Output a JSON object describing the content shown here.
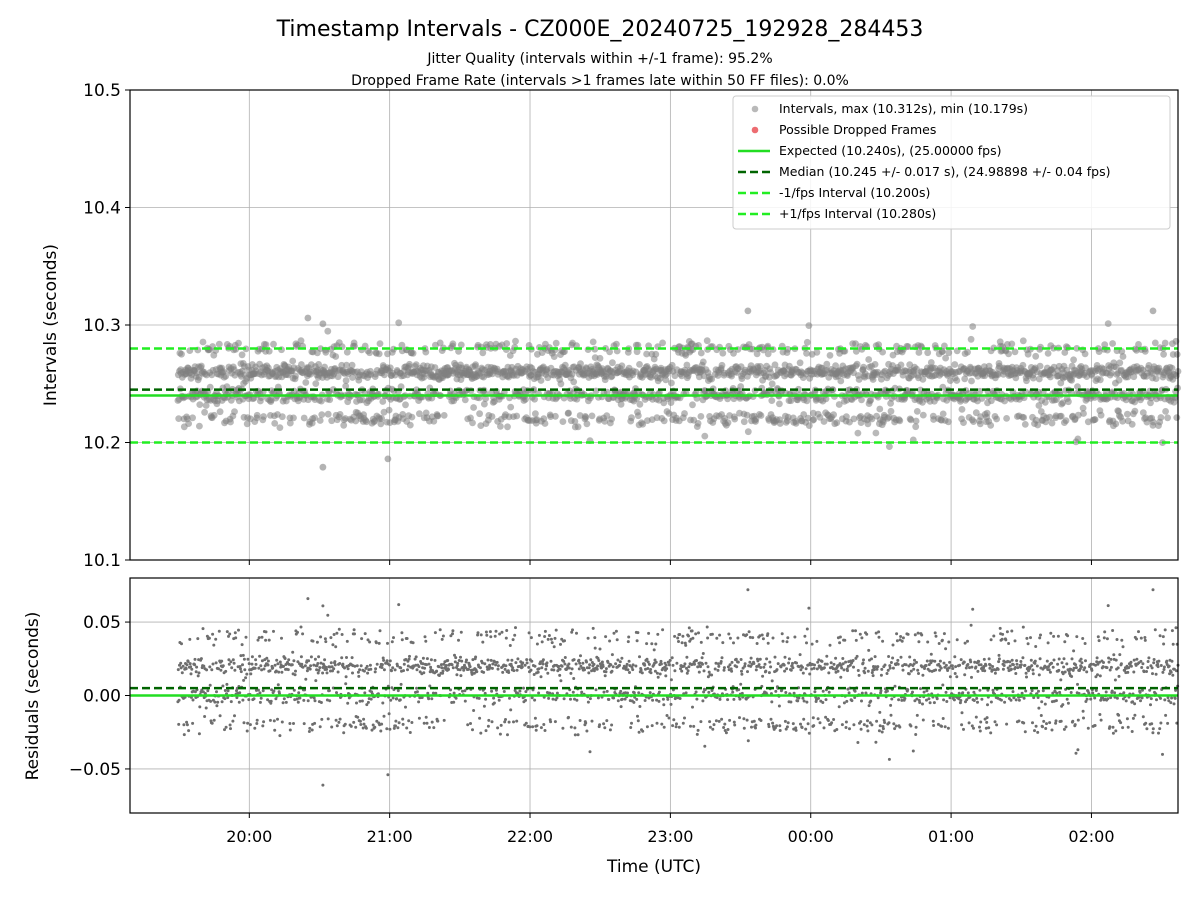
{
  "title": "Timestamp Intervals - CZ000E_20240725_192928_284453",
  "subtitle_line1": "Jitter Quality (intervals within +/-1 frame): 95.2%",
  "subtitle_line2": "Dropped Frame Rate (intervals >1 frames late within 50 FF files): 0.0%",
  "colors": {
    "points": "#808080",
    "dropped": "#e8474d",
    "expected": "#22dd22",
    "median": "#006400",
    "interval_lines": "#22ee22",
    "grid": "#b0b0b0"
  },
  "chart_data": [
    {
      "type": "scatter",
      "ylabel": "Intervals (seconds)",
      "ylim": [
        10.1,
        10.5
      ],
      "yticks": [
        10.1,
        10.2,
        10.3,
        10.4,
        10.5
      ],
      "ytick_labels": [
        "10.1",
        "10.2",
        "10.3",
        "10.4",
        "10.5"
      ],
      "xlim": [
        "2024-07-25T19:09",
        "2024-07-26T02:37"
      ],
      "grid": true,
      "legend_position": "top-right",
      "legend": [
        "Intervals, max (10.312s), min (10.179s)",
        "Possible Dropped Frames",
        "Expected (10.240s), (25.00000 fps)",
        "Median (10.245 +/- 0.017 s), (24.98898 +/- 0.04 fps)",
        "-1/fps Interval (10.200s)",
        "+1/fps Interval (10.280s)"
      ],
      "lines": {
        "expected": 10.24,
        "median": 10.245,
        "minus_1fps": 10.2,
        "plus_1fps": 10.28
      },
      "series": [
        {
          "name": "Intervals, max (10.312s), min (10.179s)",
          "x_start": "2024-07-25T19:29:28",
          "x_end": "2024-07-26T02:37:00",
          "count": 2510,
          "max": 10.312,
          "min": 10.179,
          "median": 10.245,
          "levels": [
            10.22,
            10.24,
            10.26,
            10.28
          ]
        },
        {
          "name": "Possible Dropped Frames",
          "count": 0
        }
      ]
    },
    {
      "type": "scatter",
      "xlabel": "Time (UTC)",
      "ylabel": "Residuals (seconds)",
      "ylim": [
        -0.08,
        0.08
      ],
      "yticks": [
        -0.05,
        0.0,
        0.05
      ],
      "ytick_labels": [
        "−0.05",
        "0.00",
        "0.05"
      ],
      "xticks": [
        "20:00",
        "21:00",
        "22:00",
        "23:00",
        "00:00",
        "01:00",
        "02:00"
      ],
      "grid": true,
      "lines": {
        "zero": 0.0,
        "median_residual": 0.005
      }
    }
  ]
}
